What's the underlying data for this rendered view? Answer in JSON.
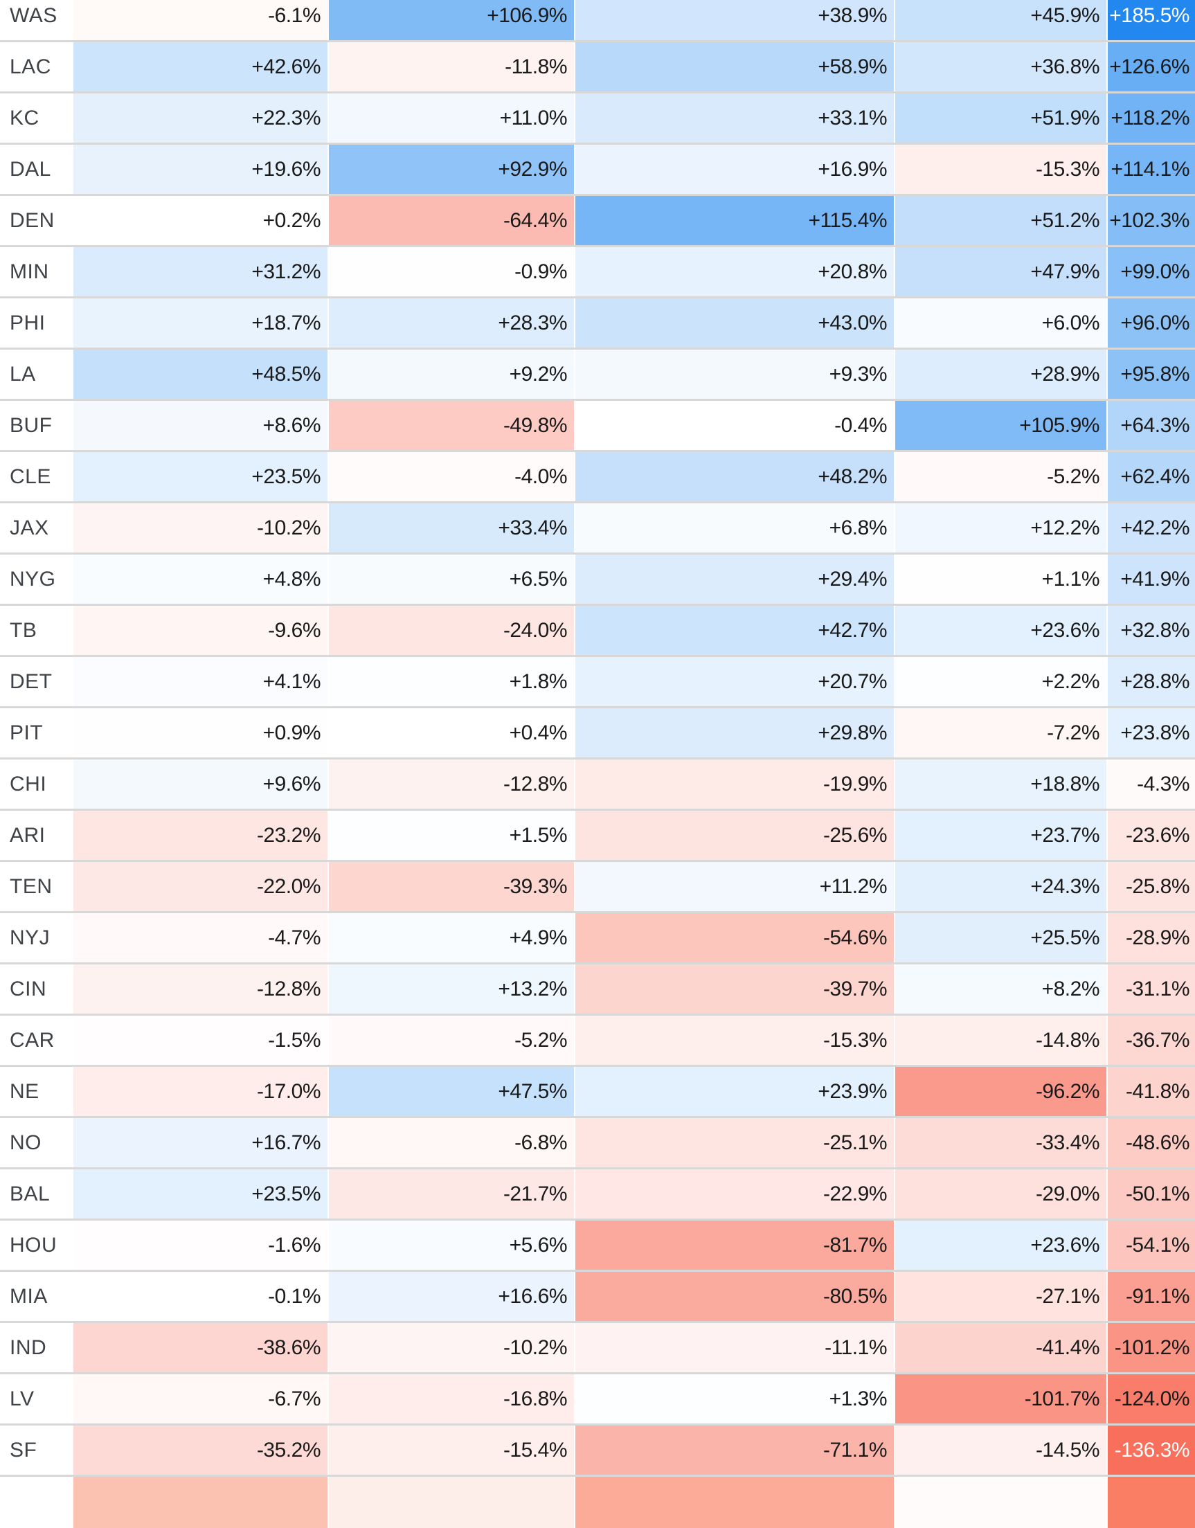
{
  "table": {
    "colors": {
      "positive_max": "#2288f0",
      "negative_max": "#f8705b",
      "value_text": "#1a1a1a",
      "team_text": "#3f4347",
      "text_on_accent": "#ffffff",
      "divider": "#d8d8d8",
      "row_background": "#ffffff"
    },
    "partial_row": {
      "cell_colors": [
        "#fbc2b1",
        "#fdeee9",
        "#fbab97",
        "#fffbfa",
        "#f97e63"
      ]
    }
  },
  "chart_data": {
    "type": "heatmap",
    "value_format": "signed percent, one decimal",
    "color_scale": {
      "kind": "diverging linear from white",
      "positive_endpoint": "#2288f0",
      "positive_endpoint_value": 185.5,
      "negative_endpoint": "#f8705b",
      "negative_endpoint_value": -136.3,
      "white_text_threshold_positive": 170,
      "white_text_threshold_negative": -130
    },
    "rows": [
      {
        "team": "WAS",
        "values": [
          -6.1,
          106.9,
          38.9,
          45.9,
          185.5
        ]
      },
      {
        "team": "LAC",
        "values": [
          42.6,
          -11.8,
          58.9,
          36.8,
          126.6
        ]
      },
      {
        "team": "KC",
        "values": [
          22.3,
          11.0,
          33.1,
          51.9,
          118.2
        ]
      },
      {
        "team": "DAL",
        "values": [
          19.6,
          92.9,
          16.9,
          -15.3,
          114.1
        ]
      },
      {
        "team": "DEN",
        "values": [
          0.2,
          -64.4,
          115.4,
          51.2,
          102.3
        ]
      },
      {
        "team": "MIN",
        "values": [
          31.2,
          -0.9,
          20.8,
          47.9,
          99.0
        ]
      },
      {
        "team": "PHI",
        "values": [
          18.7,
          28.3,
          43.0,
          6.0,
          96.0
        ]
      },
      {
        "team": "LA",
        "values": [
          48.5,
          9.2,
          9.3,
          28.9,
          95.8
        ]
      },
      {
        "team": "BUF",
        "values": [
          8.6,
          -49.8,
          -0.4,
          105.9,
          64.3
        ]
      },
      {
        "team": "CLE",
        "values": [
          23.5,
          -4.0,
          48.2,
          -5.2,
          62.4
        ]
      },
      {
        "team": "JAX",
        "values": [
          -10.2,
          33.4,
          6.8,
          12.2,
          42.2
        ]
      },
      {
        "team": "NYG",
        "values": [
          4.8,
          6.5,
          29.4,
          1.1,
          41.9
        ]
      },
      {
        "team": "TB",
        "values": [
          -9.6,
          -24.0,
          42.7,
          23.6,
          32.8
        ]
      },
      {
        "team": "DET",
        "values": [
          4.1,
          1.8,
          20.7,
          2.2,
          28.8
        ]
      },
      {
        "team": "PIT",
        "values": [
          0.9,
          0.4,
          29.8,
          -7.2,
          23.8
        ]
      },
      {
        "team": "CHI",
        "values": [
          9.6,
          -12.8,
          -19.9,
          18.8,
          -4.3
        ]
      },
      {
        "team": "ARI",
        "values": [
          -23.2,
          1.5,
          -25.6,
          23.7,
          -23.6
        ]
      },
      {
        "team": "TEN",
        "values": [
          -22.0,
          -39.3,
          11.2,
          24.3,
          -25.8
        ]
      },
      {
        "team": "NYJ",
        "values": [
          -4.7,
          4.9,
          -54.6,
          25.5,
          -28.9
        ]
      },
      {
        "team": "CIN",
        "values": [
          -12.8,
          13.2,
          -39.7,
          8.2,
          -31.1
        ]
      },
      {
        "team": "CAR",
        "values": [
          -1.5,
          -5.2,
          -15.3,
          -14.8,
          -36.7
        ]
      },
      {
        "team": "NE",
        "values": [
          -17.0,
          47.5,
          23.9,
          -96.2,
          -41.8
        ]
      },
      {
        "team": "NO",
        "values": [
          16.7,
          -6.8,
          -25.1,
          -33.4,
          -48.6
        ]
      },
      {
        "team": "BAL",
        "values": [
          23.5,
          -21.7,
          -22.9,
          -29.0,
          -50.1
        ]
      },
      {
        "team": "HOU",
        "values": [
          -1.6,
          5.6,
          -81.7,
          23.6,
          -54.1
        ]
      },
      {
        "team": "MIA",
        "values": [
          -0.1,
          16.6,
          -80.5,
          -27.1,
          -91.1
        ]
      },
      {
        "team": "IND",
        "values": [
          -38.6,
          -10.2,
          -11.1,
          -41.4,
          -101.2
        ]
      },
      {
        "team": "LV",
        "values": [
          -6.7,
          -16.8,
          1.3,
          -101.7,
          -124.0
        ]
      },
      {
        "team": "SF",
        "values": [
          -35.2,
          -15.4,
          -71.1,
          -14.5,
          -136.3
        ]
      }
    ]
  }
}
